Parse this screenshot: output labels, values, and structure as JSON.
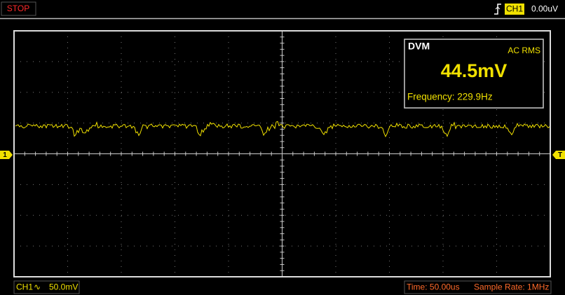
{
  "status": "STOP",
  "trigger": {
    "channel": "CH1",
    "level": "0.00uV"
  },
  "dvm": {
    "title": "DVM",
    "mode": "AC RMS",
    "reading": "44.5mV",
    "frequency": "Frequency: 229.9Hz"
  },
  "channel": {
    "name": "CH1",
    "coupling": "∿",
    "scale": "50.0mV"
  },
  "timebase": {
    "time": "Time: 50.00us",
    "sample_rate": "Sample Rate: 1MHz"
  },
  "markers": {
    "channel": "1",
    "trigger": "T"
  }
}
